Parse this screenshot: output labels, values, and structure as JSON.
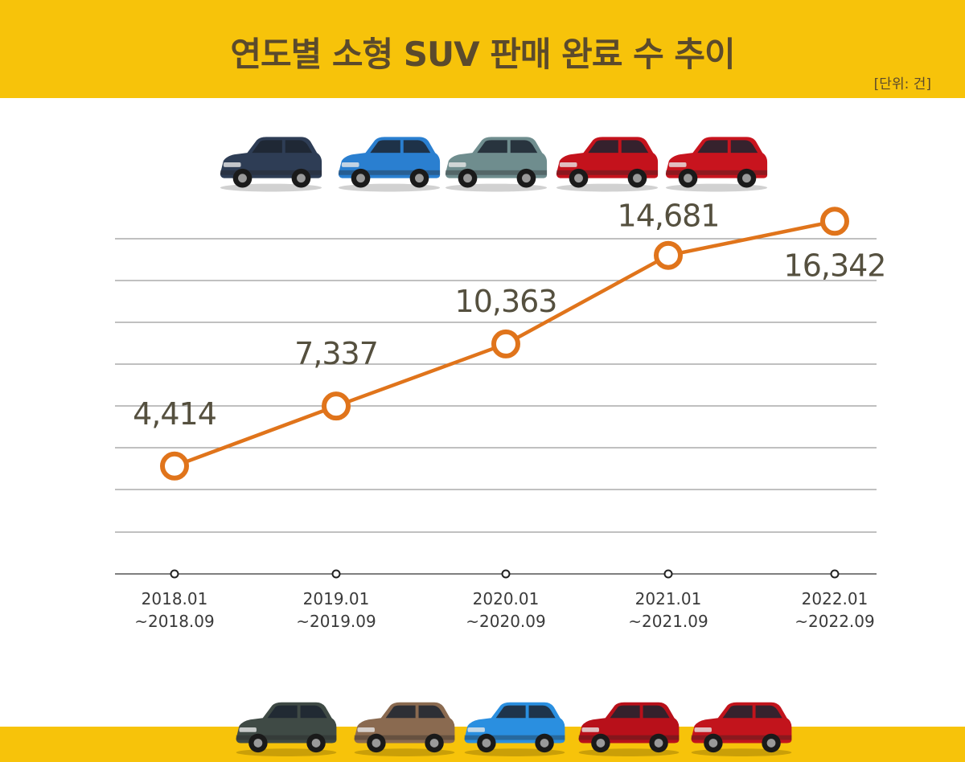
{
  "header": {
    "title": "연도별 소형 SUV 판매 완료 수 추이",
    "unit": "[단위: 건]"
  },
  "colors": {
    "band": "#f7c30a",
    "title": "#5b4a2c",
    "line": "#e0741b",
    "grid": "#9a9a9a"
  },
  "cars_top": [
    {
      "name": "car-top-1",
      "color": "#2e3d55"
    },
    {
      "name": "car-top-2",
      "color": "#2a7fd0"
    },
    {
      "name": "car-top-3",
      "color": "#6f8d8e"
    },
    {
      "name": "car-top-4",
      "color": "#c4121c"
    },
    {
      "name": "car-top-5",
      "color": "#c8141e"
    }
  ],
  "cars_bottom": [
    {
      "name": "car-bottom-1",
      "color": "#3f4a45"
    },
    {
      "name": "car-bottom-2",
      "color": "#8a6a50"
    },
    {
      "name": "car-bottom-3",
      "color": "#2a8fe0"
    },
    {
      "name": "car-bottom-4",
      "color": "#b8101a"
    },
    {
      "name": "car-bottom-5",
      "color": "#c2141c"
    }
  ],
  "chart_data": {
    "type": "line",
    "categories": [
      [
        "2018.01",
        "~2018.09"
      ],
      [
        "2019.01",
        "~2019.09"
      ],
      [
        "2020.01",
        "~2020.09"
      ],
      [
        "2021.01",
        "~2021.09"
      ],
      [
        "2022.01",
        "~2022.09"
      ]
    ],
    "values": [
      4414,
      7337,
      10363,
      14681,
      16342
    ],
    "value_labels": [
      "4,414",
      "7,337",
      "10,363",
      "14,681",
      "16,342"
    ],
    "grid": true,
    "legend": false
  }
}
